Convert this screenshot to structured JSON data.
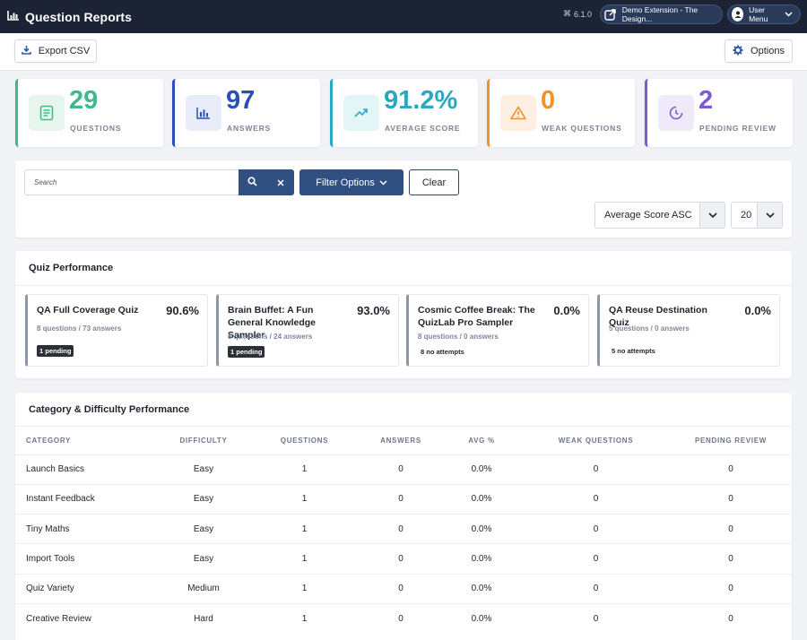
{
  "app": {
    "title": "Question Reports",
    "version": "6.1.0",
    "demo_link": "Demo Extension - The Design...",
    "user_menu": "User Menu"
  },
  "toolbar": {
    "export_label": "Export CSV",
    "options_label": "Options"
  },
  "stats": [
    {
      "value": "29",
      "label": "QUESTIONS",
      "color": "#3fb98a",
      "bg": "#e6f6ef",
      "icon": "document-icon"
    },
    {
      "value": "97",
      "label": "ANSWERS",
      "color": "#2b4fb8",
      "bg": "#e7ecf8",
      "icon": "bar-chart-icon"
    },
    {
      "value": "91.2%",
      "label": "AVERAGE SCORE",
      "color": "#2aa8bf",
      "bg": "#e4f5f8",
      "icon": "trend-up-icon"
    },
    {
      "value": "0",
      "label": "WEAK QUESTIONS",
      "color": "#f0932b",
      "bg": "#fdf0e2",
      "icon": "warning-icon"
    },
    {
      "value": "2",
      "label": "PENDING REVIEW",
      "color": "#7c5ad2",
      "bg": "#efeaf9",
      "icon": "clock-icon"
    }
  ],
  "search": {
    "placeholder": "Search",
    "filter_label": "Filter Options",
    "clear_label": "Clear",
    "sort_value": "Average Score ASC",
    "limit_value": "20"
  },
  "quiz_performance": {
    "title": "Quiz Performance",
    "cards": [
      {
        "name": "QA Full Coverage Quiz",
        "score": "90.6%",
        "meta": "8 questions / 73 answers",
        "badge": "1 pending",
        "badge_style": "dark"
      },
      {
        "name": "Brain Buffet: A Fun General Knowledge Sampler",
        "score": "93.0%",
        "meta": "8 questions / 24 answers",
        "badge": "1 pending",
        "badge_style": "dark"
      },
      {
        "name": "Cosmic Coffee Break: The QuizLab Pro Sampler",
        "score": "0.0%",
        "meta": "8 questions / 0 answers",
        "badge": "8 no attempts",
        "badge_style": "plain"
      },
      {
        "name": "QA Reuse Destination Quiz",
        "score": "0.0%",
        "meta": "5 questions / 0 answers",
        "badge": "5 no attempts",
        "badge_style": "plain"
      }
    ]
  },
  "category_performance": {
    "title": "Category & Difficulty Performance",
    "columns": [
      "CATEGORY",
      "DIFFICULTY",
      "QUESTIONS",
      "ANSWERS",
      "AVG %",
      "WEAK QUESTIONS",
      "PENDING REVIEW"
    ],
    "rows": [
      [
        "Launch Basics",
        "Easy",
        "1",
        "0",
        "0.0%",
        "0",
        "0"
      ],
      [
        "Instant Feedback",
        "Easy",
        "1",
        "0",
        "0.0%",
        "0",
        "0"
      ],
      [
        "Tiny Maths",
        "Easy",
        "1",
        "0",
        "0.0%",
        "0",
        "0"
      ],
      [
        "Import Tools",
        "Easy",
        "1",
        "0",
        "0.0%",
        "0",
        "0"
      ],
      [
        "Quiz Variety",
        "Medium",
        "1",
        "0",
        "0.0%",
        "0",
        "0"
      ],
      [
        "Creative Review",
        "Hard",
        "1",
        "0",
        "0.0%",
        "0",
        "0"
      ]
    ]
  }
}
